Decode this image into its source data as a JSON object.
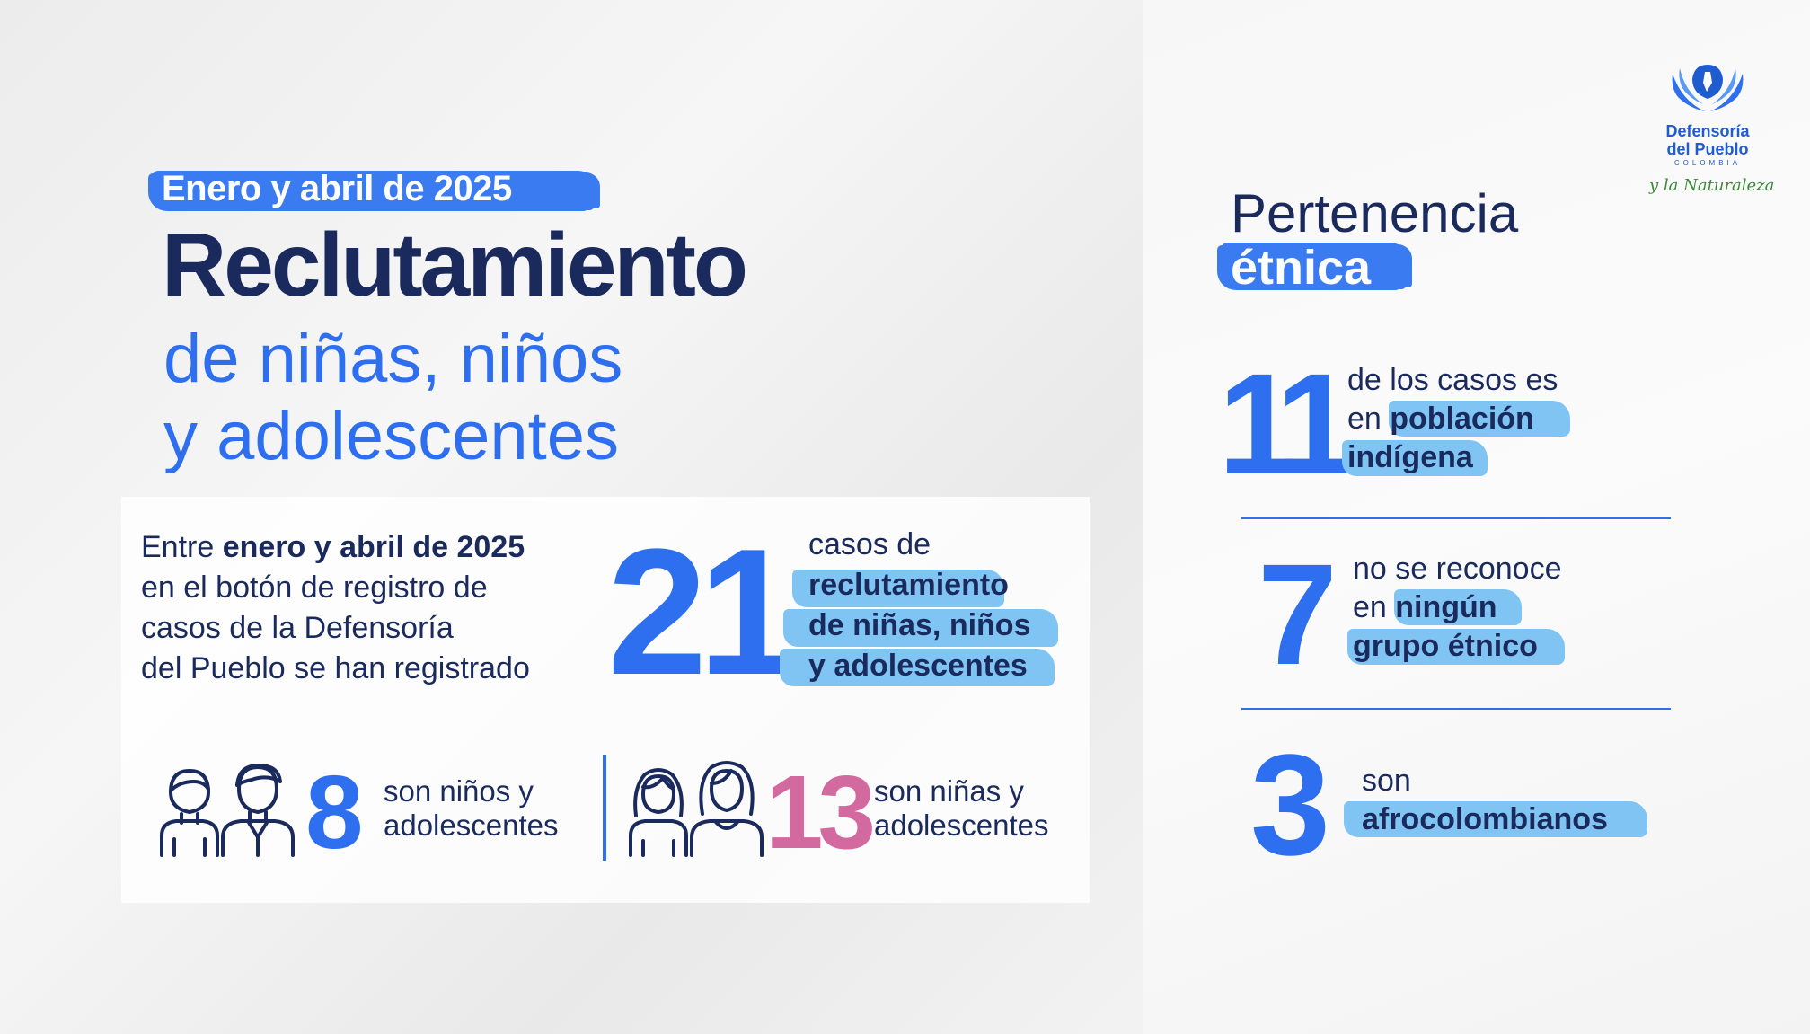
{
  "header": {
    "date_range": "Enero y abril de 2025",
    "title": "Reclutamiento",
    "subtitle_line1": "de niñas, niños",
    "subtitle_line2": "y adolescentes"
  },
  "summary": {
    "intro_line1_prefix": "Entre ",
    "intro_line1_bold": "enero y abril de 2025",
    "intro_line2": "en el botón de registro de",
    "intro_line3": "casos de la Defensoría",
    "intro_line4": "del Pueblo se han registrado",
    "total": "21",
    "cases_label": "casos de",
    "cases_highlight_line1": "reclutamiento",
    "cases_highlight_line2": "de niñas, niños",
    "cases_highlight_line3": "y adolescentes"
  },
  "gender": {
    "boys_count": "8",
    "boys_label_line1": "son niños y",
    "boys_label_line2": "adolescentes",
    "girls_count": "13",
    "girls_label_line1": "son niñas y",
    "girls_label_line2": "adolescentes"
  },
  "ethnicity": {
    "title_line1": "Pertenencia",
    "title_line2": "étnica",
    "items": [
      {
        "value": "11",
        "line1": "de los casos es",
        "line2_prefix": "en ",
        "line2_bold": "población",
        "line3_bold": "indígena"
      },
      {
        "value": "7",
        "line1": "no se reconoce",
        "line2_prefix": "en ",
        "line2_bold": "ningún",
        "line3_bold": "grupo étnico"
      },
      {
        "value": "3",
        "line1": "son",
        "line2_prefix": "",
        "line2_bold": "afrocolombianos",
        "line3_bold": ""
      }
    ]
  },
  "logo": {
    "name_line1": "Defensoría",
    "name_line2": "del Pueblo",
    "country": "COLOMBIA",
    "tagline": "y la Naturaleza"
  },
  "colors": {
    "navy": "#1b2a5c",
    "blue": "#2e6ff0",
    "light_blue_highlight": "#7fc4f3",
    "pink": "#d36a9f",
    "green_tagline": "#3a8a3a"
  },
  "icons": [
    "boy-icon",
    "young-man-icon",
    "girl-icon",
    "young-woman-icon",
    "defensoria-logo-icon"
  ]
}
